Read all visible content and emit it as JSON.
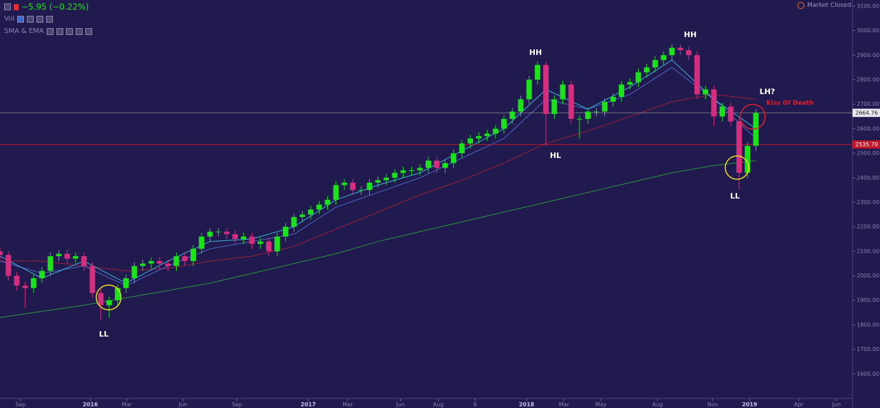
{
  "chart_data": {
    "type": "candlestick",
    "header": {
      "change": "−5.95 (−0.22%)",
      "volume_label": "Vol",
      "indicator_label": "SMA & EMA",
      "status": "Market Closed"
    },
    "x": [
      0,
      2,
      4,
      6,
      8,
      10,
      12,
      14,
      16,
      18,
      20,
      22,
      24,
      26,
      28,
      30,
      32,
      34,
      36,
      38,
      40,
      42,
      44,
      46,
      48,
      50,
      52,
      54,
      56,
      58,
      60,
      62,
      64,
      66,
      68,
      70,
      72,
      74,
      76,
      78,
      80,
      82,
      84,
      86,
      88,
      90,
      92,
      94,
      96,
      98,
      100,
      102,
      104,
      106,
      108,
      110,
      112,
      114,
      116,
      118,
      120,
      122,
      124,
      126,
      128,
      130,
      132,
      134,
      136,
      138,
      140,
      142,
      144,
      146,
      148,
      150,
      152,
      154,
      156,
      158,
      160,
      162,
      164,
      166,
      168,
      170,
      172,
      174,
      176,
      178,
      180
    ],
    "open": [
      2100,
      2085,
      2000,
      1960,
      1950,
      1990,
      2020,
      2080,
      2090,
      2070,
      2080,
      2040,
      1930,
      1880,
      1900,
      1950,
      1990,
      2040,
      2050,
      2060,
      2050,
      2040,
      2080,
      2060,
      2110,
      2160,
      2180,
      2180,
      2170,
      2150,
      2160,
      2130,
      2140,
      2100,
      2160,
      2200,
      2240,
      2250,
      2270,
      2290,
      2310,
      2370,
      2380,
      2350,
      2350,
      2380,
      2390,
      2400,
      2420,
      2430,
      2430,
      2440,
      2470,
      2440,
      2460,
      2500,
      2540,
      2560,
      2570,
      2580,
      2600,
      2640,
      2670,
      2720,
      2800,
      2860,
      2660,
      2720,
      2780,
      2640,
      2640,
      2670,
      2670,
      2710,
      2730,
      2780,
      2790,
      2830,
      2850,
      2880,
      2900,
      2930,
      2920,
      2900,
      2740,
      2760,
      2650,
      2690,
      2630,
      2420,
      2530
    ],
    "high": [
      2115,
      2100,
      2015,
      1975,
      2005,
      2035,
      2095,
      2105,
      2105,
      2095,
      2095,
      2055,
      1945,
      1915,
      1965,
      2005,
      2055,
      2065,
      2075,
      2075,
      2065,
      2095,
      2095,
      2125,
      2175,
      2195,
      2195,
      2195,
      2185,
      2175,
      2175,
      2155,
      2155,
      2175,
      2215,
      2255,
      2265,
      2285,
      2305,
      2325,
      2385,
      2395,
      2395,
      2365,
      2395,
      2405,
      2415,
      2435,
      2445,
      2445,
      2455,
      2485,
      2485,
      2475,
      2515,
      2555,
      2575,
      2585,
      2595,
      2615,
      2655,
      2685,
      2735,
      2815,
      2875,
      2875,
      2735,
      2795,
      2795,
      2655,
      2685,
      2685,
      2725,
      2745,
      2795,
      2805,
      2845,
      2865,
      2895,
      2915,
      2945,
      2945,
      2935,
      2915,
      2775,
      2775,
      2705,
      2705,
      2645,
      2545,
      2680
    ],
    "low": [
      2065,
      1980,
      1940,
      1870,
      1930,
      1970,
      2000,
      2060,
      2050,
      2050,
      2020,
      1910,
      1820,
      1830,
      1880,
      1930,
      1970,
      2020,
      2030,
      2030,
      2020,
      2020,
      2040,
      2040,
      2090,
      2140,
      2160,
      2150,
      2130,
      2130,
      2110,
      2110,
      2080,
      2080,
      2140,
      2180,
      2220,
      2230,
      2250,
      2270,
      2290,
      2350,
      2330,
      2330,
      2330,
      2360,
      2370,
      2380,
      2400,
      2410,
      2410,
      2420,
      2420,
      2420,
      2440,
      2480,
      2520,
      2540,
      2550,
      2560,
      2580,
      2620,
      2650,
      2700,
      2780,
      2530,
      2640,
      2700,
      2620,
      2560,
      2620,
      2650,
      2650,
      2690,
      2710,
      2760,
      2770,
      2810,
      2830,
      2860,
      2880,
      2900,
      2880,
      2720,
      2720,
      2610,
      2630,
      2610,
      2350,
      2400,
      2510
    ],
    "close": [
      2085,
      2000,
      1960,
      1950,
      1990,
      2020,
      2080,
      2090,
      2070,
      2080,
      2040,
      1930,
      1880,
      1900,
      1950,
      1990,
      2040,
      2050,
      2060,
      2050,
      2040,
      2080,
      2060,
      2110,
      2160,
      2180,
      2180,
      2170,
      2150,
      2160,
      2130,
      2140,
      2100,
      2160,
      2200,
      2240,
      2250,
      2270,
      2290,
      2310,
      2370,
      2380,
      2350,
      2350,
      2380,
      2390,
      2400,
      2420,
      2430,
      2430,
      2440,
      2470,
      2440,
      2460,
      2500,
      2540,
      2560,
      2570,
      2580,
      2600,
      2640,
      2670,
      2720,
      2800,
      2860,
      2660,
      2720,
      2780,
      2640,
      2640,
      2670,
      2670,
      2710,
      2730,
      2780,
      2790,
      2830,
      2850,
      2880,
      2900,
      2930,
      2920,
      2900,
      2740,
      2760,
      2650,
      2690,
      2630,
      2420,
      2530,
      2665
    ],
    "up_color": "#1fe01f",
    "down_color": "#d42f7f",
    "overlay_x": [
      0,
      10,
      20,
      30,
      40,
      50,
      60,
      70,
      80,
      90,
      100,
      110,
      120,
      130,
      140,
      150,
      160,
      170,
      180
    ],
    "overlays": [
      {
        "color": "#2a9a3a",
        "values": [
          1830,
          1855,
          1880,
          1910,
          1940,
          1970,
          2010,
          2050,
          2090,
          2140,
          2180,
          2220,
          2260,
          2300,
          2340,
          2380,
          2420,
          2450,
          2470
        ]
      },
      {
        "color": "#a0203a",
        "values": [
          2060,
          2060,
          2040,
          2020,
          2030,
          2060,
          2080,
          2120,
          2190,
          2260,
          2330,
          2390,
          2460,
          2540,
          2590,
          2650,
          2710,
          2740,
          2720
        ]
      },
      {
        "color": "#4a6ac8",
        "values": [
          2060,
          2010,
          2040,
          1960,
          2040,
          2110,
          2140,
          2170,
          2280,
          2340,
          2400,
          2480,
          2560,
          2720,
          2680,
          2740,
          2850,
          2720,
          2560
        ]
      },
      {
        "color": "#3ab8e0",
        "values": [
          2080,
          1990,
          2060,
          1970,
          2060,
          2140,
          2150,
          2200,
          2310,
          2370,
          2420,
          2510,
          2600,
          2760,
          2680,
          2770,
          2880,
          2720,
          2600
        ]
      }
    ],
    "price_lines": [
      {
        "value": 2664.76,
        "label": "2664.76",
        "color": "#c8c8d0",
        "dashed": true
      },
      {
        "value": 2535.7,
        "label": "2535.70",
        "color": "#c0182a",
        "dashed": false
      }
    ],
    "xlim": [
      0,
      203
    ],
    "ylim": [
      1500,
      3125
    ],
    "xticks": [
      {
        "value": 4.9,
        "label": "Sep"
      },
      {
        "value": 21.5,
        "label": "2016"
      },
      {
        "value": 30.2,
        "label": "Mar"
      },
      {
        "value": 43.6,
        "label": "Jun"
      },
      {
        "value": 56.4,
        "label": "Sep"
      },
      {
        "value": 73.4,
        "label": "2017"
      },
      {
        "value": 82.8,
        "label": "Mar"
      },
      {
        "value": 95.4,
        "label": "Jun"
      },
      {
        "value": 104.4,
        "label": "Aug"
      },
      {
        "value": 113.1,
        "label": "9"
      },
      {
        "value": 125.4,
        "label": "2018"
      },
      {
        "value": 134.3,
        "label": "Mar"
      },
      {
        "value": 143.1,
        "label": "May"
      },
      {
        "value": 156.6,
        "label": "Aug"
      },
      {
        "value": 169.7,
        "label": "Nov"
      },
      {
        "value": 178.5,
        "label": "2019"
      },
      {
        "value": 190.2,
        "label": "Apr"
      },
      {
        "value": 199.2,
        "label": "Jun"
      }
    ],
    "yticks": [
      {
        "value": 1600,
        "label": "1600.00"
      },
      {
        "value": 1700,
        "label": "1700.00"
      },
      {
        "value": 1800,
        "label": "1800.00"
      },
      {
        "value": 1900,
        "label": "1900.00"
      },
      {
        "value": 2000,
        "label": "2000.00"
      },
      {
        "value": 2100,
        "label": "2100.00"
      },
      {
        "value": 2200,
        "label": "2200.00"
      },
      {
        "value": 2300,
        "label": "2300.00"
      },
      {
        "value": 2400,
        "label": "2400.00"
      },
      {
        "value": 2500,
        "label": "2500.00"
      },
      {
        "value": 2600,
        "label": "2600.00"
      },
      {
        "value": 2700,
        "label": "2700.00"
      },
      {
        "value": 2800,
        "label": "2800.00"
      },
      {
        "value": 2900,
        "label": "2900.00"
      },
      {
        "value": 3000,
        "label": "3000.00"
      },
      {
        "value": 3100,
        "label": "3100.00"
      }
    ],
    "annotations": [
      {
        "text": "HH",
        "color": "#ffffff"
      },
      {
        "text": "HH",
        "color": "#ffffff"
      },
      {
        "text": "HL",
        "color": "#ffffff"
      },
      {
        "text": "LL",
        "color": "#ffffff"
      },
      {
        "text": "LL",
        "color": "#ffffff"
      },
      {
        "text": "LH?",
        "color": "#ffffff"
      },
      {
        "text": "Kiss Of Death",
        "color": "#e0202a"
      }
    ]
  }
}
